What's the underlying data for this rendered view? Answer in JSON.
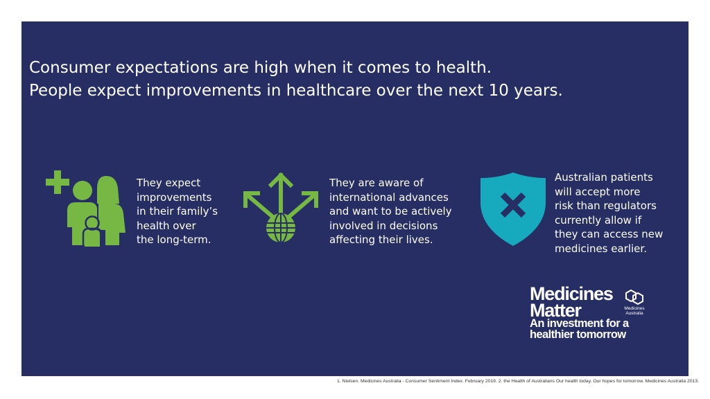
{
  "headline": {
    "line1": "Consumer expectations are high when it comes to health.",
    "line2": "People expect improvements in healthcare over the next 10 years."
  },
  "items": [
    {
      "icon": "family-health-icon",
      "lines": [
        "They expect",
        "improvements",
        "in their family’s",
        "health over",
        "the long-term."
      ]
    },
    {
      "icon": "globe-arrows-icon",
      "lines": [
        "They are aware of",
        "international advances",
        "and want to be actively",
        "involved in decisions",
        "affecting their lives."
      ]
    },
    {
      "icon": "shield-x-icon",
      "lines": [
        "Australian patients",
        "will accept more",
        "risk than regulators",
        "currently allow if",
        "they can access new",
        "medicines earlier."
      ]
    }
  ],
  "brand": {
    "word1": "Medicines",
    "word2": "Matter",
    "mark_line1": "Medicines",
    "mark_line2": "Australia",
    "tagline_line1": "An investment for a",
    "tagline_line2": "healthier tomorrow"
  },
  "footnote": "1. Nielsen. Medicines Australia - Consumer Sentiment Index. February 2019.  2. the Health of Australians Our health today. Our hopes for tomorrow. Medicines Australia 2013.",
  "colors": {
    "panel": "#262e63",
    "green": "#76b843",
    "teal": "#17a9be",
    "text": "#ffffff"
  }
}
